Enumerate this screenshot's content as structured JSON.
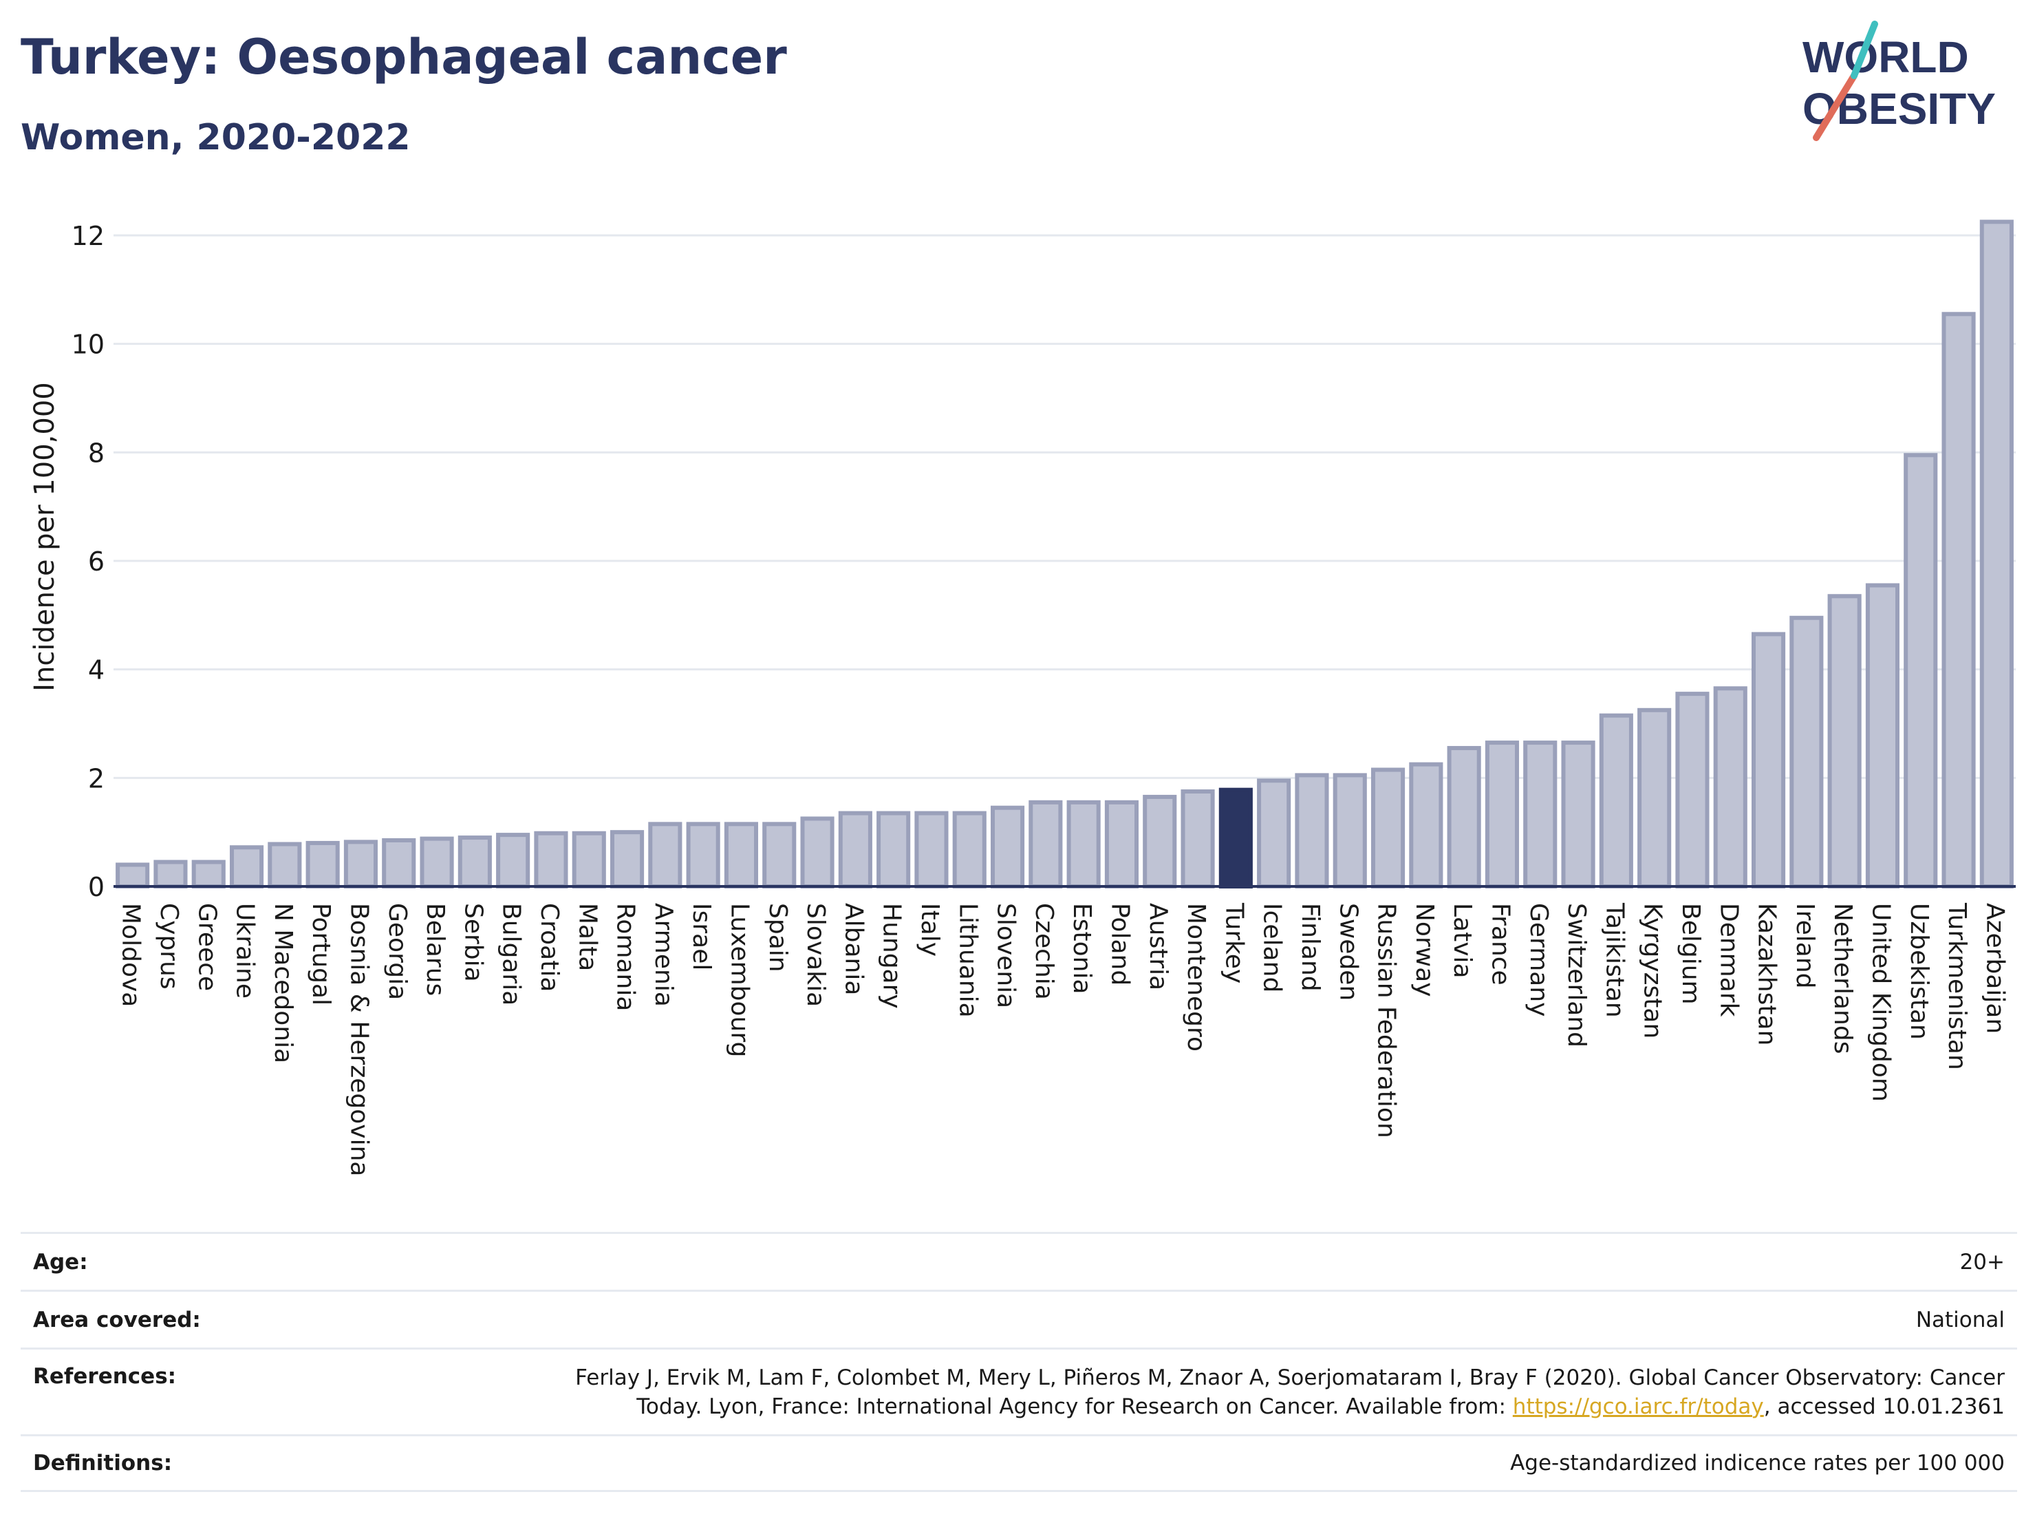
{
  "header": {
    "title": "Turkey: Oesophageal cancer",
    "subtitle": "Women, 2020-2022"
  },
  "logo": {
    "line1": "WORLD",
    "line2": "OBESITY",
    "colors": {
      "text": "#2a3561",
      "slash_red": "#e06c5a",
      "slash_teal": "#3fbfbf"
    }
  },
  "chart_data": {
    "type": "bar",
    "title": "Turkey: Oesophageal cancer",
    "subtitle": "Women, 2020-2022",
    "xlabel": "",
    "ylabel": "Incidence per 100,000",
    "ylim": [
      0,
      12.5
    ],
    "yticks": [
      0,
      2,
      4,
      6,
      8,
      10,
      12
    ],
    "grid": true,
    "highlight": "Turkey",
    "colors": {
      "bar": "#bfc3d4",
      "bar_edge": "#9aa0ba",
      "highlight": "#2a3561"
    },
    "categories": [
      "Moldova",
      "Cyprus",
      "Greece",
      "Ukraine",
      "N Macedonia",
      "Portugal",
      "Bosnia & Herzegovina",
      "Georgia",
      "Belarus",
      "Serbia",
      "Bulgaria",
      "Croatia",
      "Malta",
      "Romania",
      "Armenia",
      "Israel",
      "Luxembourg",
      "Spain",
      "Slovakia",
      "Albania",
      "Hungary",
      "Italy",
      "Lithuania",
      "Slovenia",
      "Czechia",
      "Estonia",
      "Poland",
      "Austria",
      "Montenegro",
      "Turkey",
      "Iceland",
      "Finland",
      "Sweden",
      "Russian Federation",
      "Norway",
      "Latvia",
      "France",
      "Germany",
      "Switzerland",
      "Tajikistan",
      "Kyrgyzstan",
      "Belgium",
      "Denmark",
      "Kazakhstan",
      "Ireland",
      "Netherlands",
      "United Kingdom",
      "Uzbekistan",
      "Turkmenistan",
      "Azerbaijan"
    ],
    "values": [
      0.4,
      0.45,
      0.45,
      0.72,
      0.78,
      0.8,
      0.82,
      0.85,
      0.88,
      0.9,
      0.95,
      0.98,
      0.98,
      1.0,
      1.15,
      1.15,
      1.15,
      1.15,
      1.25,
      1.35,
      1.35,
      1.35,
      1.35,
      1.45,
      1.55,
      1.55,
      1.55,
      1.65,
      1.75,
      1.78,
      1.95,
      2.05,
      2.05,
      2.15,
      2.25,
      2.55,
      2.65,
      2.65,
      2.65,
      3.15,
      3.25,
      3.55,
      3.65,
      4.65,
      4.95,
      5.35,
      5.55,
      7.95,
      10.55,
      12.25
    ]
  },
  "meta": {
    "age_label": "Age:",
    "age_value": "20+",
    "area_label": "Area covered:",
    "area_value": "National",
    "references_label": "References:",
    "references_line1": "Ferlay J, Ervik M, Lam F, Colombet M, Mery L, Piñeros M, Znaor A, Soerjomataram I, Bray F (2020). Global Cancer Observatory: Cancer",
    "references_line2_pre": "Today. Lyon, France: International Agency for Research on Cancer. Available from: ",
    "references_link": "https://gco.iarc.fr/today",
    "references_line2_post": ", accessed 10.01.2361",
    "definitions_label": "Definitions:",
    "definitions_value": "Age-standardized indicence rates per 100 000"
  }
}
